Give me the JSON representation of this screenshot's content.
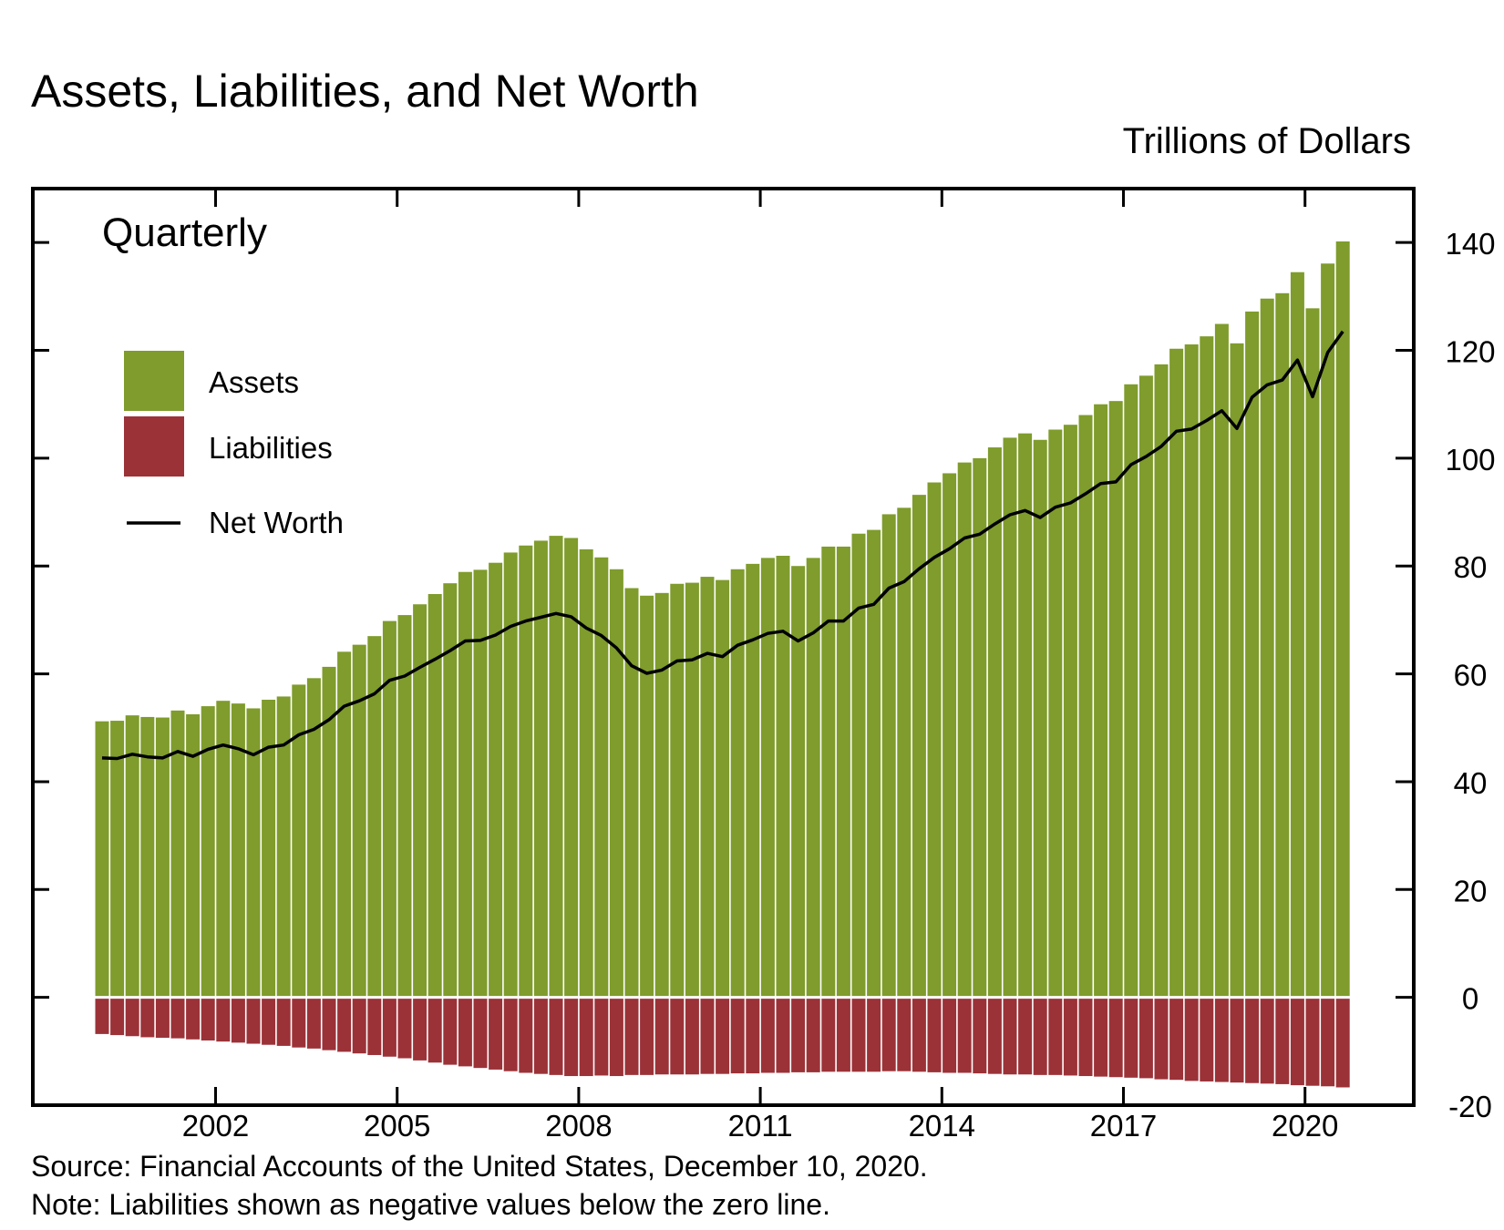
{
  "chart_data": {
    "type": "bar",
    "title": "Assets, Liabilities, and Net Worth",
    "unit_label": "Trillions of Dollars",
    "frequency_label": "Quarterly",
    "source": "Source: Financial Accounts of the United States, December 10, 2020.",
    "note": "Note: Liabilities shown as negative values below the zero line.",
    "first_period": "2000 Q1",
    "x_tick_labels": [
      "2002",
      "2005",
      "2008",
      "2011",
      "2014",
      "2017",
      "2020"
    ],
    "ylim": [
      -20,
      150
    ],
    "y_ticks": [
      -20,
      0,
      20,
      40,
      60,
      80,
      100,
      120,
      140
    ],
    "y_axis_side": "right",
    "legend_placement": "upper-left",
    "colors": {
      "assets": "#7f9c2c",
      "liabilities": "#9b3238",
      "net_worth": "#000000"
    },
    "series": [
      {
        "name": "Assets",
        "kind": "bar",
        "values": [
          51.2,
          51.3,
          52.3,
          52.0,
          51.9,
          53.2,
          52.5,
          54.0,
          55.0,
          54.5,
          53.6,
          55.2,
          55.8,
          58.0,
          59.2,
          61.3,
          64.1,
          65.4,
          67.0,
          69.8,
          70.9,
          72.9,
          74.8,
          76.8,
          78.9,
          79.3,
          80.6,
          82.5,
          83.8,
          84.7,
          85.6,
          85.2,
          83.1,
          81.6,
          79.4,
          75.9,
          74.5,
          75.0,
          76.7,
          76.9,
          78.0,
          77.4,
          79.4,
          80.4,
          81.5,
          81.9,
          80.0,
          81.5,
          83.6,
          83.6,
          86.0,
          86.7,
          89.6,
          90.8,
          93.2,
          95.5,
          97.2,
          99.2,
          100.0,
          102.0,
          103.8,
          104.6,
          103.4,
          105.3,
          106.2,
          108.0,
          110.0,
          110.6,
          113.7,
          115.3,
          117.4,
          120.3,
          121.1,
          122.6,
          124.9,
          121.3,
          127.2,
          129.6,
          130.6,
          134.5,
          127.8,
          136.1,
          140.2
        ]
      },
      {
        "name": "Liabilities",
        "kind": "bar",
        "values": [
          -6.8,
          -7.0,
          -7.2,
          -7.4,
          -7.5,
          -7.6,
          -7.8,
          -8.0,
          -8.2,
          -8.4,
          -8.6,
          -8.8,
          -9.0,
          -9.3,
          -9.5,
          -9.8,
          -10.1,
          -10.4,
          -10.7,
          -11.0,
          -11.3,
          -11.7,
          -12.1,
          -12.5,
          -12.8,
          -13.1,
          -13.4,
          -13.7,
          -14.0,
          -14.2,
          -14.4,
          -14.6,
          -14.6,
          -14.5,
          -14.6,
          -14.4,
          -14.4,
          -14.3,
          -14.3,
          -14.3,
          -14.2,
          -14.2,
          -14.1,
          -14.1,
          -14.0,
          -14.0,
          -13.9,
          -13.9,
          -13.8,
          -13.8,
          -13.8,
          -13.8,
          -13.7,
          -13.7,
          -13.8,
          -13.9,
          -14.0,
          -14.0,
          -14.1,
          -14.2,
          -14.3,
          -14.3,
          -14.4,
          -14.4,
          -14.5,
          -14.6,
          -14.7,
          -14.8,
          -14.9,
          -15.0,
          -15.2,
          -15.3,
          -15.5,
          -15.6,
          -15.7,
          -15.8,
          -15.9,
          -16.0,
          -16.1,
          -16.3,
          -16.4,
          -16.5,
          -16.7
        ]
      },
      {
        "name": "Net Worth",
        "kind": "line",
        "values": [
          44.4,
          44.3,
          45.1,
          44.6,
          44.4,
          45.6,
          44.7,
          46.0,
          46.8,
          46.1,
          45.0,
          46.4,
          46.8,
          48.7,
          49.7,
          51.5,
          54.0,
          55.0,
          56.3,
          58.8,
          59.6,
          61.2,
          62.7,
          64.3,
          66.1,
          66.2,
          67.2,
          68.8,
          69.8,
          70.5,
          71.2,
          70.6,
          68.5,
          67.1,
          64.8,
          61.5,
          60.1,
          60.7,
          62.4,
          62.6,
          63.8,
          63.2,
          65.3,
          66.3,
          67.5,
          67.9,
          66.1,
          67.6,
          69.8,
          69.8,
          72.2,
          72.9,
          75.9,
          77.1,
          79.5,
          81.6,
          83.2,
          85.2,
          85.9,
          87.8,
          89.5,
          90.3,
          89.0,
          90.9,
          91.7,
          93.4,
          95.3,
          95.6,
          98.8,
          100.3,
          102.2,
          105.0,
          105.4,
          107.0,
          108.8,
          105.5,
          111.3,
          113.6,
          114.5,
          118.2,
          111.4,
          119.6,
          123.5
        ]
      }
    ]
  }
}
